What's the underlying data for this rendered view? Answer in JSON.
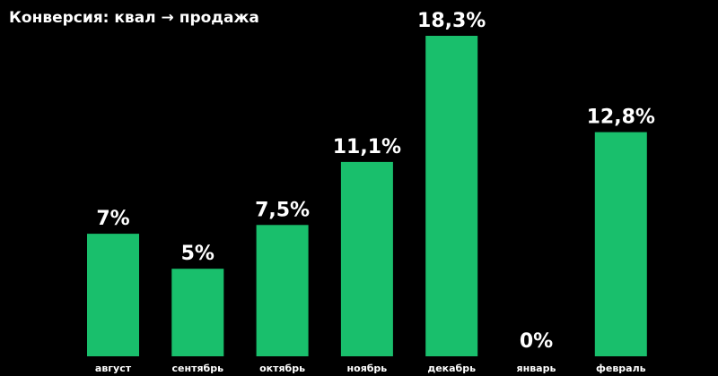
{
  "chart_data": {
    "type": "bar",
    "title": "Конверсия: квал → продажа",
    "categories": [
      "август",
      "сентябрь",
      "октябрь",
      "ноябрь",
      "декабрь",
      "январь",
      "февраль"
    ],
    "values": [
      7,
      5,
      7.5,
      11.1,
      18.3,
      0,
      12.8
    ],
    "data_labels": [
      "7%",
      "5%",
      "7,5%",
      "11,1%",
      "18,3%",
      "0%",
      "12,8%"
    ],
    "xlabel": "",
    "ylabel": "",
    "ylim": [
      0,
      18.3
    ],
    "grid": false,
    "legend": "none",
    "colors": {
      "bar": "#19BF6C",
      "background": "#000000",
      "text": "#FFFFFF"
    }
  }
}
